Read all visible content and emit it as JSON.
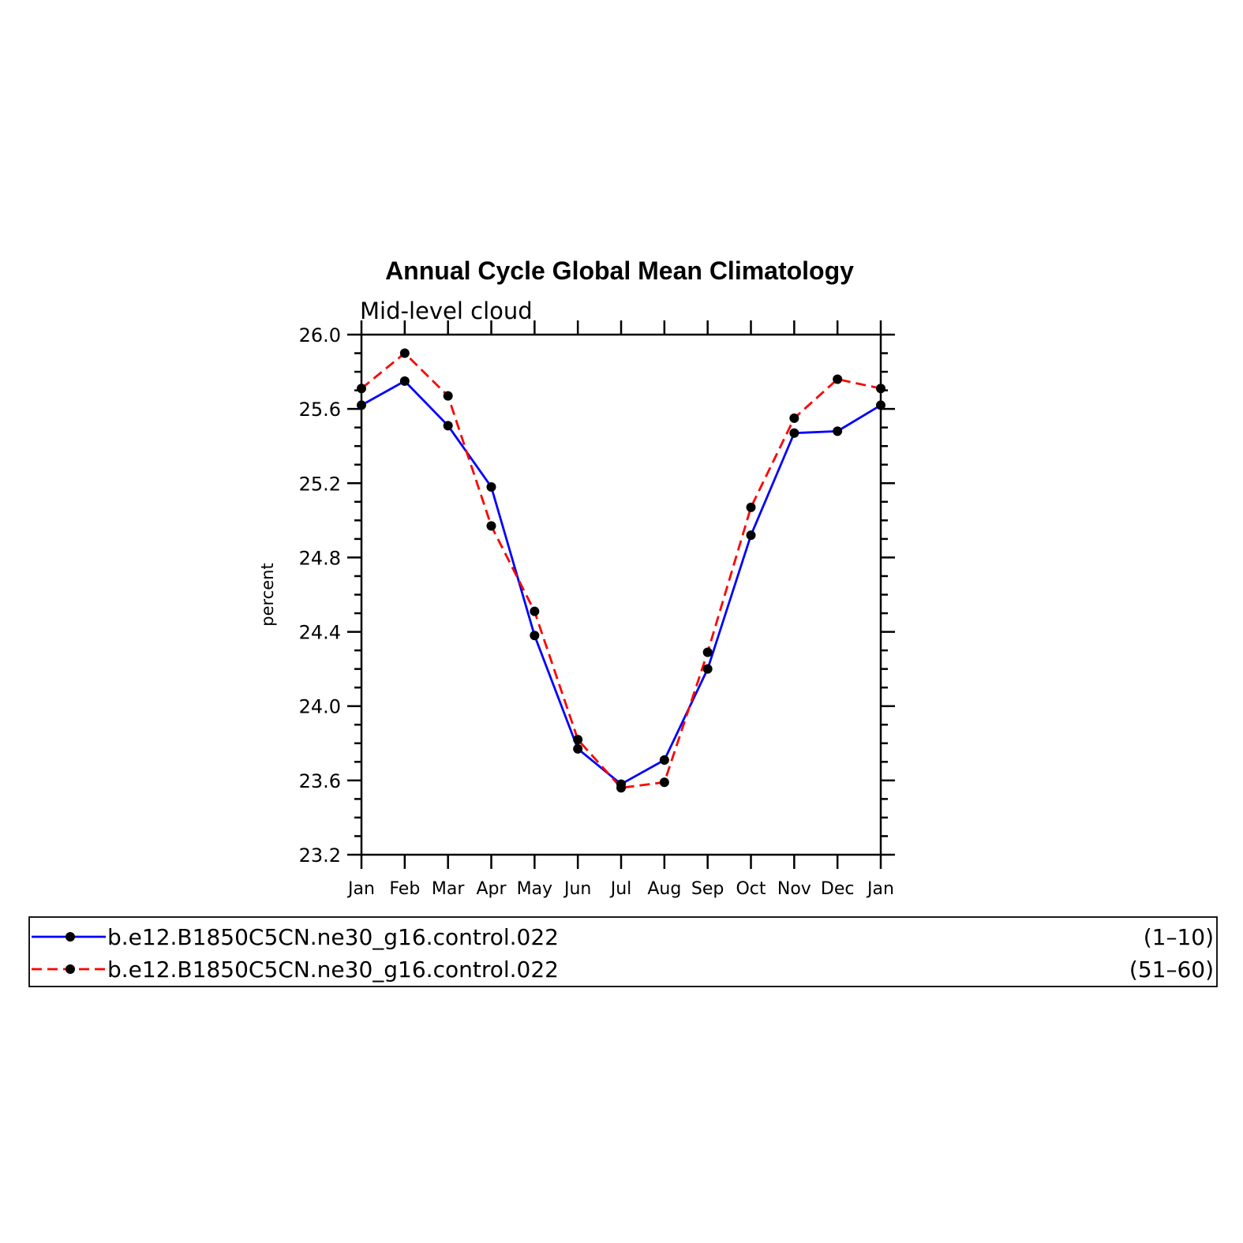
{
  "chart_data": {
    "type": "line",
    "title": "Annual Cycle Global Mean Climatology",
    "subtitle": "Mid-level cloud",
    "ylabel": "percent",
    "xlabel": "",
    "categories": [
      "Jan",
      "Feb",
      "Mar",
      "Apr",
      "May",
      "Jun",
      "Jul",
      "Aug",
      "Sep",
      "Oct",
      "Nov",
      "Dec",
      "Jan"
    ],
    "ylim": [
      23.2,
      26.0
    ],
    "yticks": [
      "23.2",
      "23.6",
      "24.0",
      "24.4",
      "24.8",
      "25.2",
      "25.6",
      "26.0"
    ],
    "series": [
      {
        "name": "b.e12.B1850C5CN.ne30_g16.control.022",
        "years": "(1–10)",
        "color": "#0000ff",
        "dash": "solid",
        "values": [
          25.62,
          25.75,
          25.51,
          25.18,
          24.38,
          23.77,
          23.58,
          23.71,
          24.2,
          24.92,
          25.47,
          25.48,
          25.62
        ]
      },
      {
        "name": "b.e12.B1850C5CN.ne30_g16.control.022",
        "years": "(51–60)",
        "color": "#ff0000",
        "dash": "dashed",
        "values": [
          25.71,
          25.9,
          25.67,
          24.97,
          24.51,
          23.82,
          23.56,
          23.59,
          24.29,
          25.07,
          25.55,
          25.76,
          25.71
        ]
      }
    ],
    "marker_color": "#000000",
    "legend_position": "bottom"
  }
}
